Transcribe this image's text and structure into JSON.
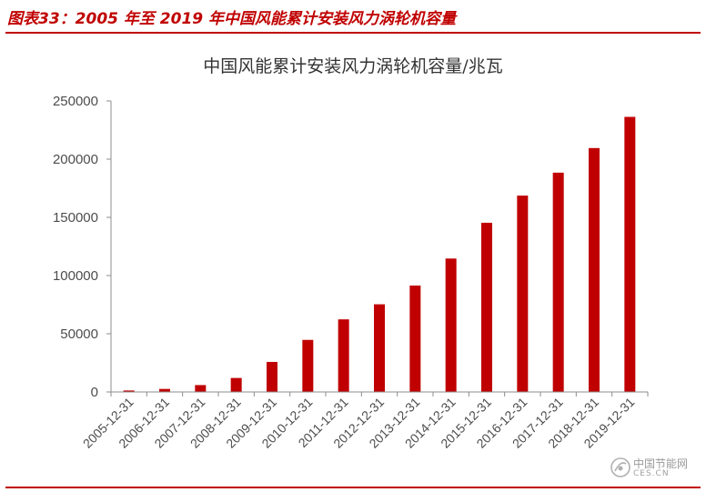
{
  "figure_caption": "图表33：2005 年至 2019 年中国风能累计安装风力涡轮机容量",
  "chart_data": {
    "type": "bar",
    "title": "中国风能累计安装风力涡轮机容量/兆瓦",
    "categories": [
      "2005-12-31",
      "2006-12-31",
      "2007-12-31",
      "2008-12-31",
      "2009-12-31",
      "2010-12-31",
      "2011-12-31",
      "2012-12-31",
      "2013-12-31",
      "2014-12-31",
      "2015-12-31",
      "2016-12-31",
      "2017-12-31",
      "2018-12-31",
      "2019-12-31"
    ],
    "values": [
      1266,
      2599,
      5912,
      12020,
      25805,
      44733,
      62364,
      75324,
      91412,
      114609,
      145362,
      168690,
      188392,
      209529,
      236320
    ],
    "y_ticks": [
      "0",
      "50000",
      "100000",
      "150000",
      "200000",
      "250000"
    ],
    "ylim": [
      0,
      250000
    ],
    "bar_color": "#c00000",
    "grid": false,
    "legend": "none"
  },
  "watermark": {
    "text_cn": "中国节能网",
    "text_en": "CES.CN"
  }
}
